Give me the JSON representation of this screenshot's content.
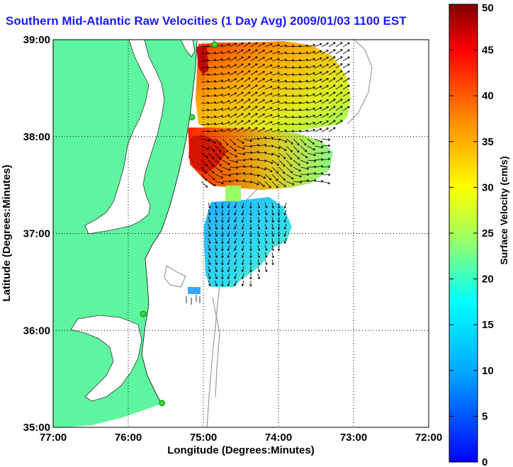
{
  "title": "Southern Mid-Atlantic Raw Velocities (1 Day Avg) 2009/01/03 1100 EST",
  "axes": {
    "xlabel": "Longitude (Degrees:Minutes)",
    "ylabel": "Latitude (Degrees:Minutes)",
    "xticks": [
      "77:00",
      "76:00",
      "75:00",
      "74:00",
      "73:00",
      "72:00"
    ],
    "yticks": [
      "39:00",
      "38:00",
      "37:00",
      "36:00",
      "35:00"
    ],
    "xlim": [
      -77,
      -72
    ],
    "ylim": [
      35,
      39
    ],
    "grid": "dotted"
  },
  "colorbar": {
    "label": "Surface Velocity (cm/s)",
    "ticks": [
      "50",
      "45",
      "40",
      "35",
      "30",
      "25",
      "20",
      "15",
      "10",
      "5",
      "0"
    ],
    "range": [
      0,
      50
    ],
    "colormap": "jet"
  },
  "colors": {
    "title": "#1a1aff",
    "land": "#5ef5a0",
    "station": "#33dd33",
    "bathymetry": "#999999"
  },
  "stations": [
    {
      "lon": -74.85,
      "lat": 38.95
    },
    {
      "lon": -75.15,
      "lat": 38.2
    },
    {
      "lon": -75.8,
      "lat": 36.17
    },
    {
      "lon": -75.55,
      "lat": 35.25
    }
  ]
}
